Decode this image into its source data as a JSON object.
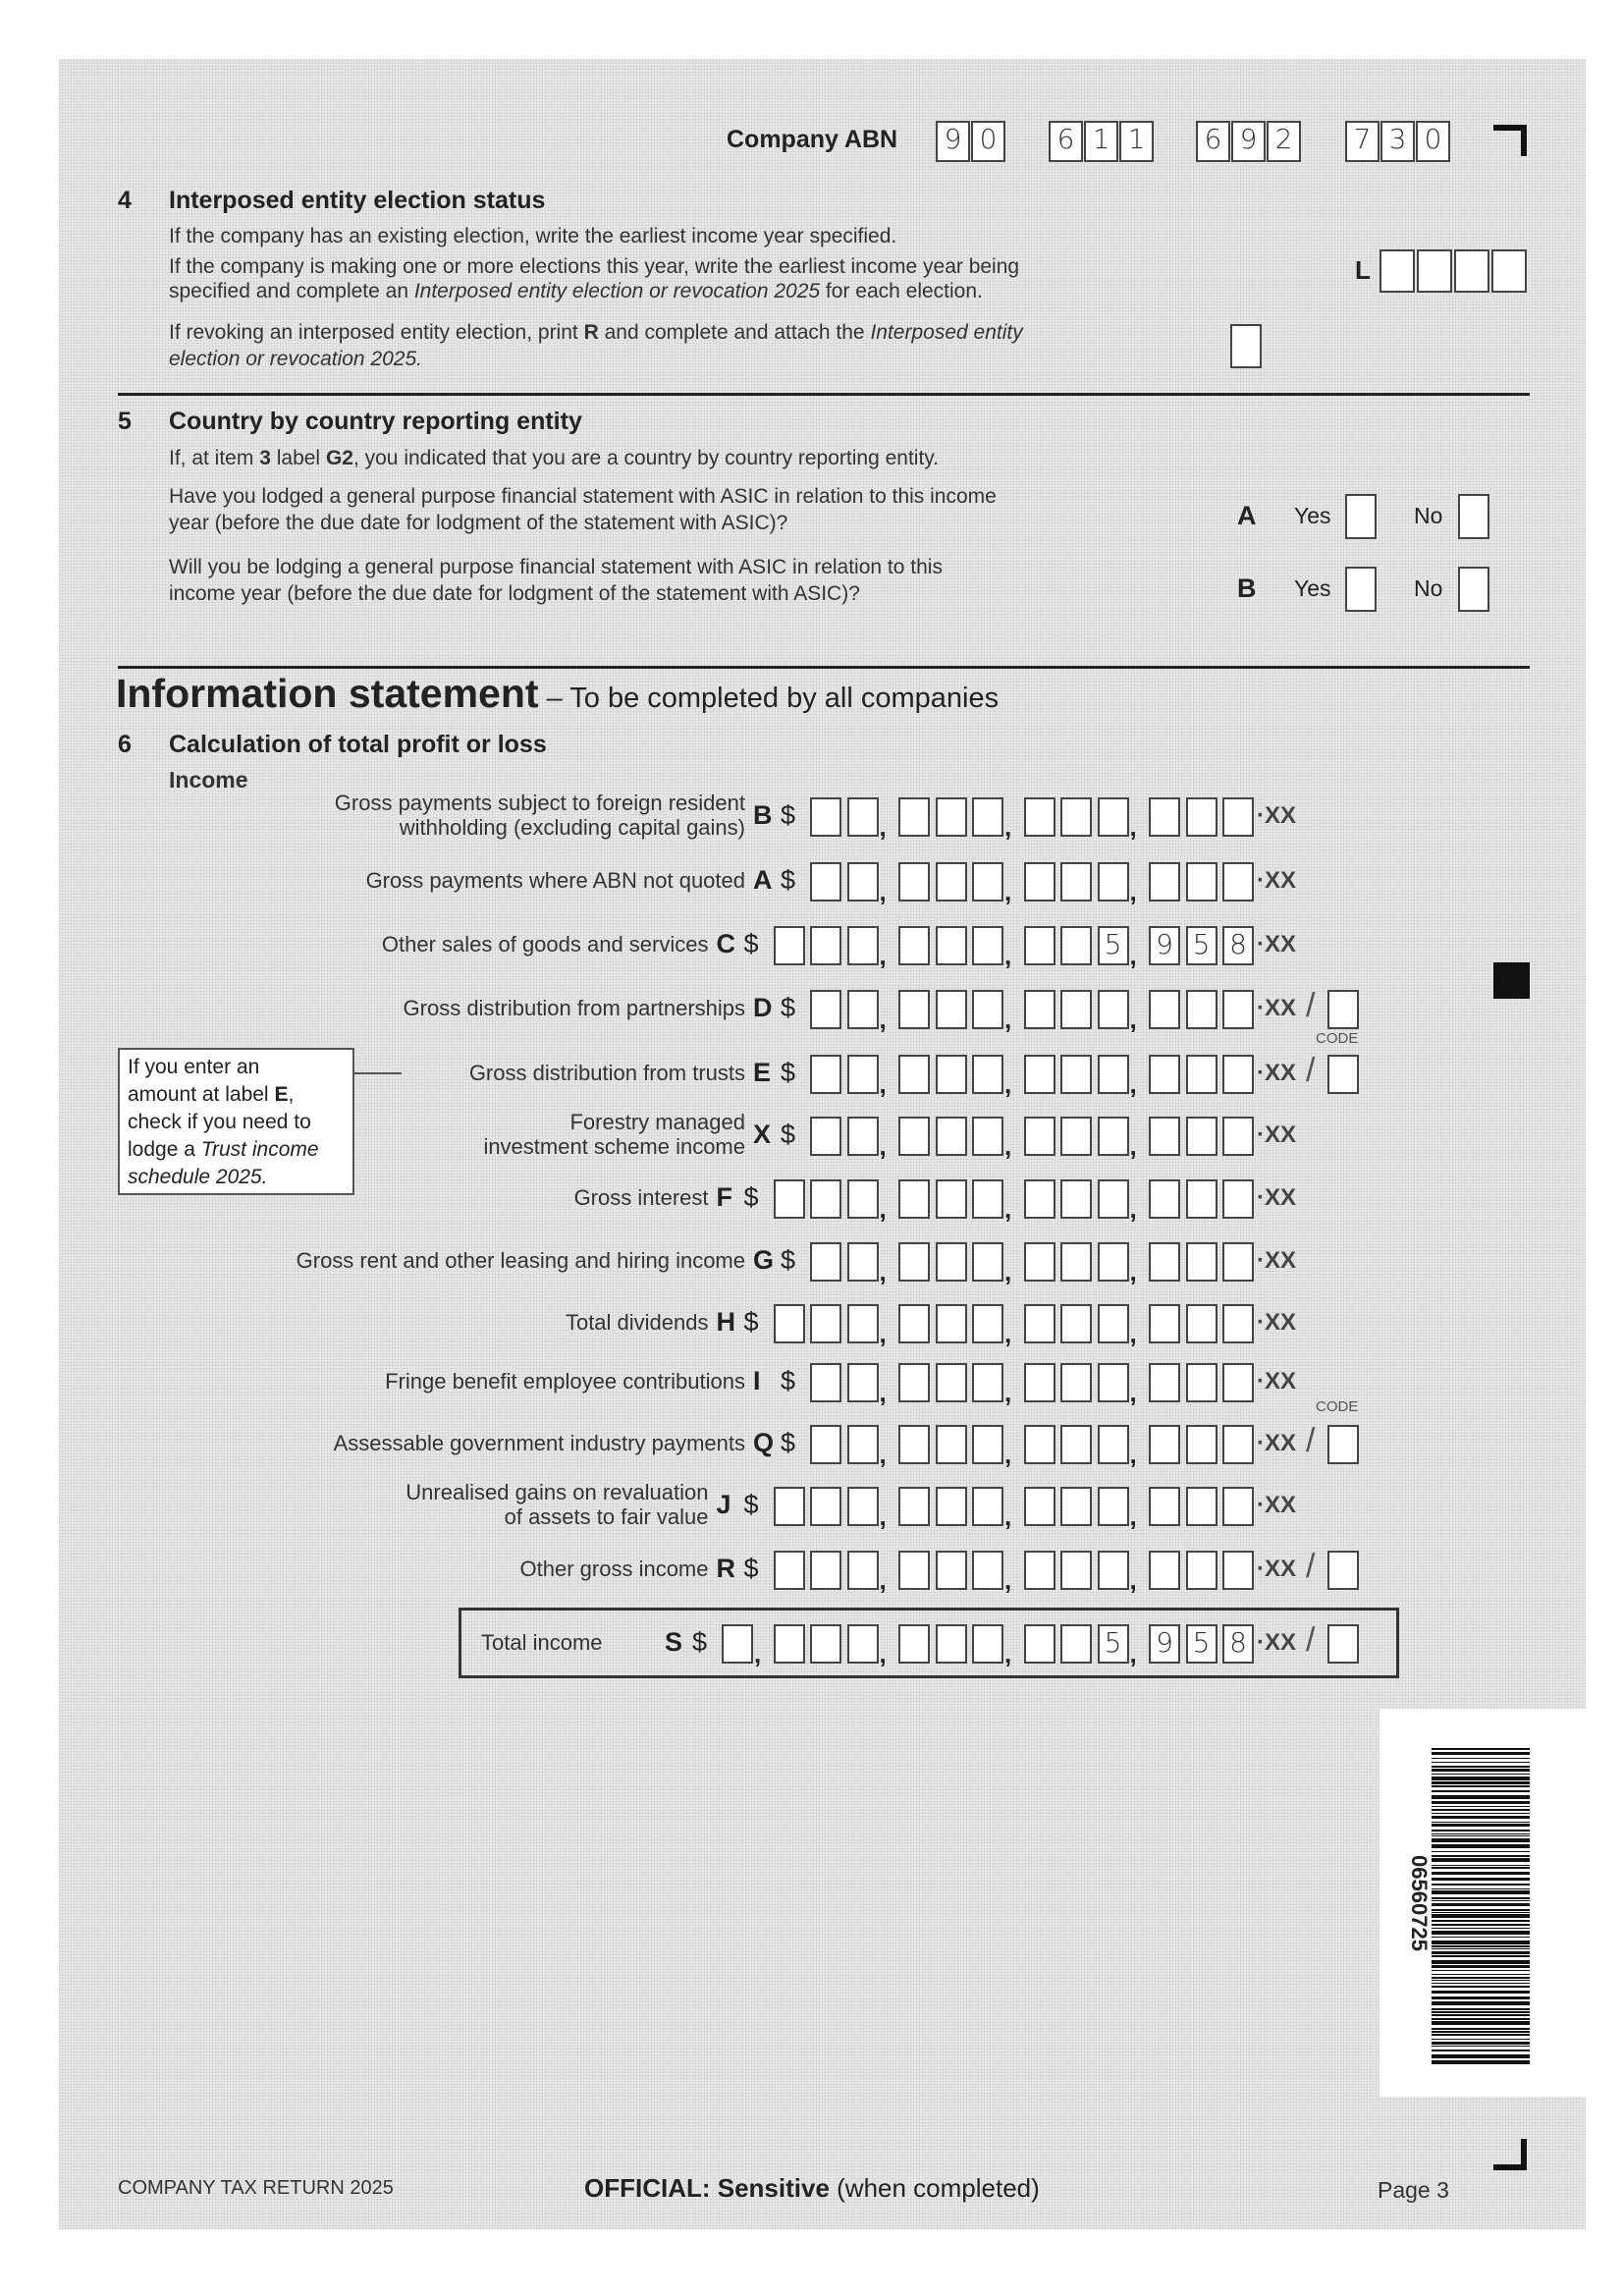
{
  "header": {
    "abn_label": "Company ABN",
    "abn_digits": [
      [
        "9",
        "0"
      ],
      [
        "6",
        "1",
        "1"
      ],
      [
        "6",
        "9",
        "2"
      ],
      [
        "7",
        "3",
        "0"
      ]
    ]
  },
  "section4": {
    "number": "4",
    "title": "Interposed entity election status",
    "line1": "If the company has an existing election, write the earliest income year specified.",
    "line2": "If the company is making one or more elections this year, write the earliest income year being",
    "line3a": "specified and complete an ",
    "line3b": "Interposed entity election or revocation 2025",
    "line3c": " for each election.",
    "label_L": "L",
    "revoke1a": "If revoking an interposed entity election, print ",
    "revoke1b": "R",
    "revoke1c": " and complete and attach the ",
    "revoke1d": "Interposed entity",
    "revoke2": "election or revocation 2025."
  },
  "section5": {
    "number": "5",
    "title": "Country by country reporting entity",
    "intro_a": "If, at item ",
    "intro_b": "3",
    "intro_c": " label ",
    "intro_d": "G2",
    "intro_e": ", you indicated that you are a country by country reporting entity.",
    "qA1": "Have you lodged a general purpose financial statement with ASIC in relation to this income",
    "qA2": "year (before the due date for lodgment of the statement with ASIC)?",
    "qB1": "Will you be lodging a general purpose financial statement with ASIC in relation to this",
    "qB2": "income year (before the due date for lodgment of the statement with ASIC)?",
    "label_A": "A",
    "label_B": "B",
    "yes": "Yes",
    "no": "No"
  },
  "info": {
    "title": "Information statement",
    "subtitle": " – To be completed by all companies"
  },
  "section6": {
    "number": "6",
    "title": "Calculation of total profit or loss",
    "income": "Income",
    "code_label": "CODE",
    "callout": {
      "l1": "If you enter an",
      "l2a": "amount at label ",
      "l2b": "E",
      "l2c": ",",
      "l3": "check if you need to",
      "l4a": "lodge a ",
      "l4b": "Trust income",
      "l5": "schedule 2025."
    },
    "rows": [
      {
        "label": [
          "Gross payments subject to foreign resident",
          "withholding (excluding capital gains)"
        ],
        "letter": "B",
        "boxes": 11,
        "digits": "",
        "code": false
      },
      {
        "label": [
          "Gross payments where ABN not quoted"
        ],
        "letter": "A",
        "boxes": 11,
        "digits": "",
        "code": false
      },
      {
        "label": [
          "Other sales of goods and services"
        ],
        "letter": "C",
        "boxes": 12,
        "digits": "5958",
        "code": false
      },
      {
        "label": [
          "Gross distribution from partnerships"
        ],
        "letter": "D",
        "boxes": 11,
        "digits": "",
        "code": true
      },
      {
        "label": [
          "Gross distribution from trusts"
        ],
        "letter": "E",
        "boxes": 11,
        "digits": "",
        "code": true
      },
      {
        "label": [
          "Forestry managed",
          "investment scheme income"
        ],
        "letter": "X",
        "boxes": 11,
        "digits": "",
        "code": false
      },
      {
        "label": [
          "Gross interest"
        ],
        "letter": "F",
        "boxes": 12,
        "digits": "",
        "code": false
      },
      {
        "label": [
          "Gross rent and other leasing and hiring income"
        ],
        "letter": "G",
        "boxes": 11,
        "digits": "",
        "code": false
      },
      {
        "label": [
          "Total dividends"
        ],
        "letter": "H",
        "boxes": 12,
        "digits": "",
        "code": false
      },
      {
        "label": [
          "Fringe benefit employee contributions"
        ],
        "letter": "I",
        "boxes": 11,
        "digits": "",
        "code": false
      },
      {
        "label": [
          "Assessable government industry payments"
        ],
        "letter": "Q",
        "boxes": 11,
        "digits": "",
        "code": true
      },
      {
        "label": [
          "Unrealised gains on revaluation",
          "of assets to fair value"
        ],
        "letter": "J",
        "boxes": 12,
        "digits": "",
        "code": false
      },
      {
        "label": [
          "Other gross income"
        ],
        "letter": "R",
        "boxes": 12,
        "digits": "",
        "code": true
      }
    ],
    "total": {
      "label": "Total income",
      "letter": "S",
      "boxes": 13,
      "digits": "5958",
      "code": true
    },
    "cents": "·XX",
    "currency": "$"
  },
  "barcode": {
    "number": "06560725"
  },
  "footer": {
    "left": "COMPANY TAX RETURN 2025",
    "center_bold": "OFFICIAL: Sensitive",
    "center_rest": " (when completed)",
    "right": "Page 3"
  }
}
